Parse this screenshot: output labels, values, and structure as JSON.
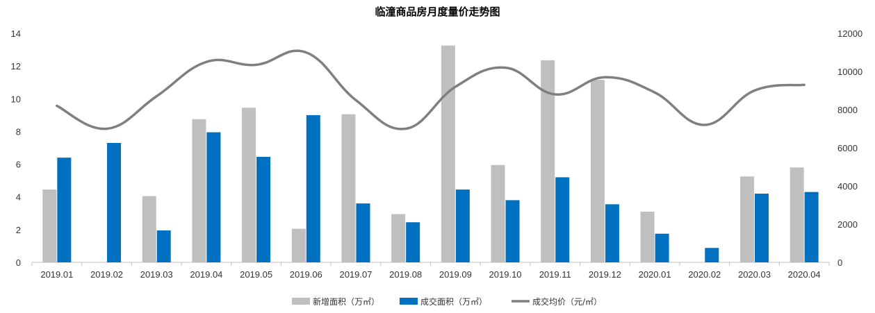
{
  "chart_data": {
    "type": "bar",
    "title": "临潼商品房月度量价走势图",
    "categories": [
      "2019.01",
      "2019.02",
      "2019.03",
      "2019.04",
      "2019.05",
      "2019.06",
      "2019.07",
      "2019.08",
      "2019.09",
      "2019.10",
      "2019.11",
      "2019.12",
      "2020.01",
      "2020.02",
      "2020.03",
      "2020.04"
    ],
    "series": [
      {
        "name": "新增面积（万㎡）",
        "kind": "bar",
        "axis": "left",
        "color": "#bfbfbf",
        "values": [
          4.45,
          0,
          4.05,
          8.75,
          9.45,
          2.05,
          9.05,
          2.95,
          13.25,
          5.95,
          12.35,
          11.15,
          3.1,
          0,
          5.25,
          5.8
        ]
      },
      {
        "name": "成交面积（万㎡）",
        "kind": "bar",
        "axis": "left",
        "color": "#0070c0",
        "values": [
          6.4,
          7.3,
          1.95,
          7.95,
          6.45,
          9.0,
          3.6,
          2.45,
          4.45,
          3.8,
          5.2,
          3.55,
          1.75,
          0.88,
          4.2,
          4.3
        ]
      },
      {
        "name": "成交均价（元/㎡）",
        "kind": "line",
        "axis": "right",
        "color": "#7f7f7f",
        "values": [
          8200,
          7000,
          8700,
          10500,
          10350,
          11000,
          8500,
          7000,
          9200,
          10200,
          8800,
          9700,
          8900,
          7200,
          9000,
          9300
        ]
      }
    ],
    "y_left": {
      "min": 0,
      "max": 14,
      "step": 2,
      "ticks": [
        "0",
        "2",
        "4",
        "6",
        "8",
        "10",
        "12",
        "14"
      ]
    },
    "y_right": {
      "min": 0,
      "max": 12000,
      "step": 2000,
      "ticks": [
        "0",
        "2000",
        "4000",
        "6000",
        "8000",
        "10000",
        "12000"
      ]
    },
    "legend_position": "bottom-center",
    "grid": false
  }
}
